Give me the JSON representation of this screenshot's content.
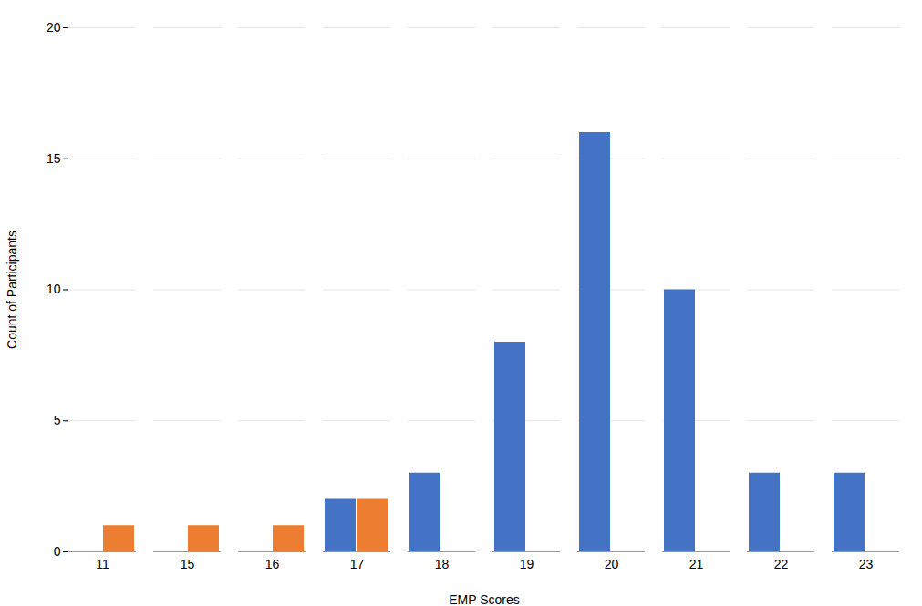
{
  "chart_data": {
    "type": "bar",
    "xlabel": "EMP Scores",
    "ylabel": "Count of Participants",
    "categories": [
      "11",
      "15",
      "16",
      "17",
      "18",
      "19",
      "20",
      "21",
      "22",
      "23"
    ],
    "series": [
      {
        "color": "#4472C4",
        "values": [
          0,
          0,
          0,
          2,
          3,
          8,
          16,
          10,
          3,
          3
        ]
      },
      {
        "color": "#ED7D31",
        "values": [
          1,
          1,
          1,
          2,
          0,
          0,
          0,
          0,
          0,
          0
        ]
      }
    ],
    "ylim": [
      0,
      20
    ],
    "yticks": [
      0,
      5,
      10,
      15,
      20
    ],
    "grid": true
  }
}
